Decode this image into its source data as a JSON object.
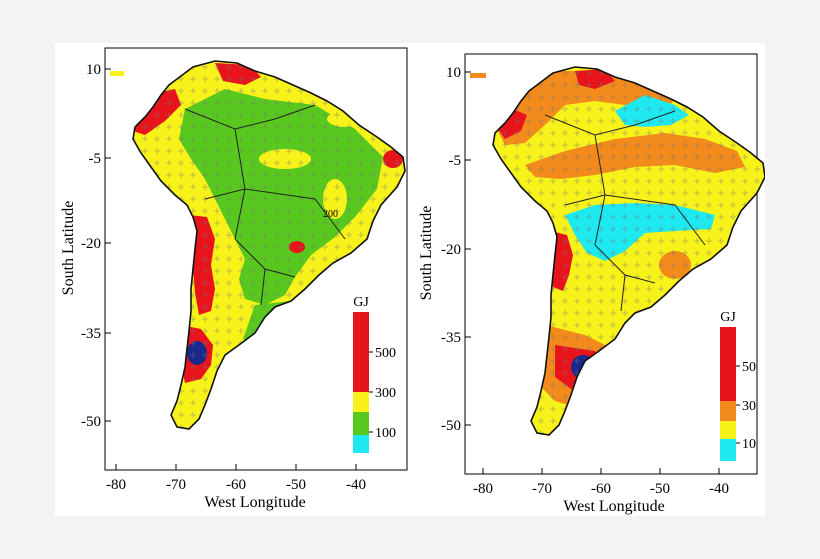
{
  "figure": {
    "panels": [
      {
        "id": "left",
        "xlabel": "West Longitude",
        "ylabel": "South Latitude",
        "x_ticks": [
          -80,
          -70,
          -60,
          -50,
          -40
        ],
        "y_ticks": [
          10,
          -5,
          -20,
          -35,
          -50
        ],
        "contour_label": "200",
        "legend": {
          "title": "GJ",
          "bands": [
            {
              "color": "#e8141c",
              "from": 500,
              "to": null
            },
            {
              "color": "#e8141c",
              "from": 300,
              "to": 500
            },
            {
              "color": "#f7f21a",
              "from": 100,
              "to": 300
            },
            {
              "color": "#58c81e",
              "from": null,
              "to": 100
            },
            {
              "color": "#1ee8f0",
              "from": null,
              "to": null
            }
          ],
          "labels": [
            "500",
            "300",
            "100"
          ]
        },
        "dominant_colors": {
          "interior": "#58c81e",
          "coast": "#f7f21a",
          "hot": "#e8141c"
        }
      },
      {
        "id": "right",
        "xlabel": "West Longitude",
        "ylabel": "South Latitude",
        "x_ticks": [
          -80,
          -70,
          -60,
          -50,
          -40
        ],
        "y_ticks": [
          10,
          -5,
          -20,
          -35,
          -50
        ],
        "legend": {
          "title": "GJ",
          "bands": [
            {
              "color": "#e8141c"
            },
            {
              "color": "#e8141c"
            },
            {
              "color": "#f28a1c"
            },
            {
              "color": "#f7f21a"
            },
            {
              "color": "#1ee8f0"
            }
          ],
          "labels": [
            "50",
            "30",
            "10"
          ]
        },
        "dominant_colors": {
          "interior": "#f7f21a",
          "band": "#f28a1c",
          "low": "#1ee8f0",
          "hot": "#e8141c"
        }
      }
    ]
  }
}
